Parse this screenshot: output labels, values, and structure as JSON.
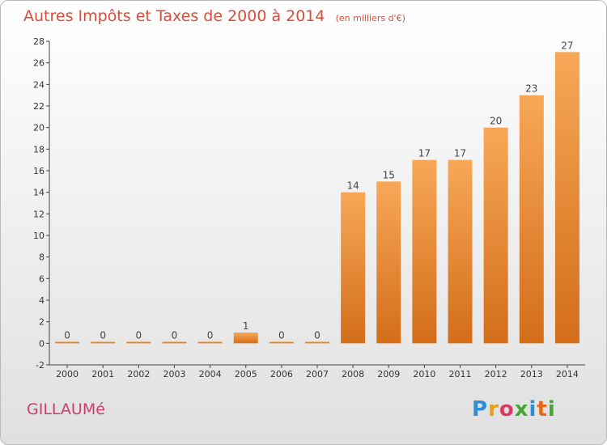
{
  "title": "Autres Impôts et Taxes de 2000 à 2014",
  "unit": "(en milliers d'€)",
  "city": "GILLAUMé",
  "logo": [
    "P",
    "r",
    "o",
    "x",
    "i",
    "t",
    "i"
  ],
  "colors": {
    "title": "#d84e3a",
    "city": "#cc3d6a",
    "bar_light": "#f7a856",
    "bar_dark": "#d36d1b"
  },
  "chart_data": {
    "type": "bar",
    "categories": [
      "2000",
      "2001",
      "2002",
      "2003",
      "2004",
      "2005",
      "2006",
      "2007",
      "2008",
      "2009",
      "2010",
      "2011",
      "2012",
      "2013",
      "2014"
    ],
    "values": [
      0,
      0,
      0,
      0,
      0,
      1,
      0,
      0,
      14,
      15,
      17,
      17,
      20,
      23,
      27
    ],
    "data_labels": [
      "0",
      "0",
      "0",
      "0",
      "0",
      "1",
      "0",
      "0",
      "14",
      "15",
      "17",
      "17",
      "20",
      "23",
      "27"
    ],
    "ylim": [
      -2,
      28
    ],
    "yticks": [
      -2,
      0,
      2,
      4,
      6,
      8,
      10,
      12,
      14,
      16,
      18,
      20,
      22,
      24,
      26,
      28
    ],
    "grid": false,
    "legend": "none"
  }
}
